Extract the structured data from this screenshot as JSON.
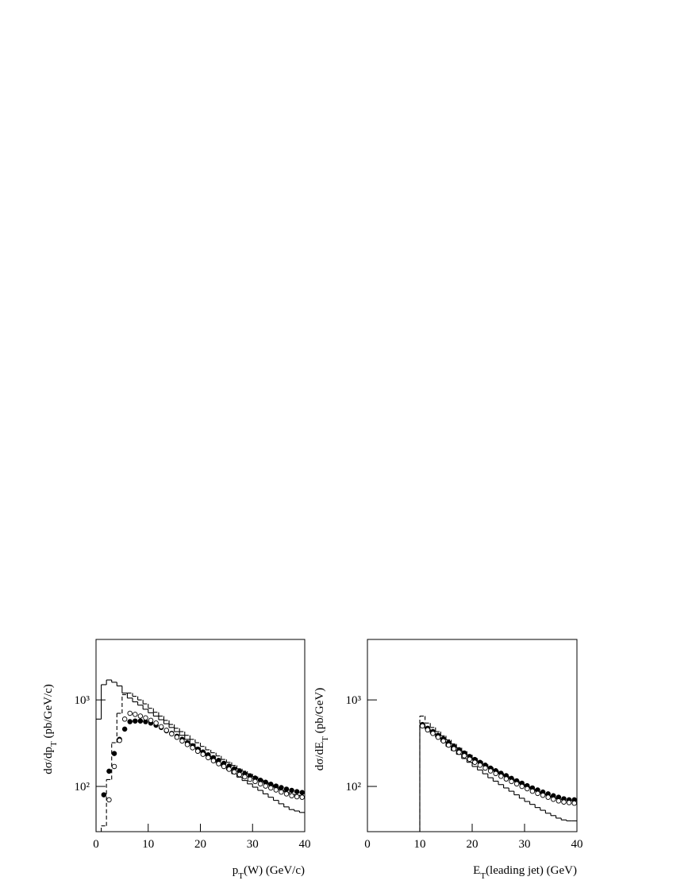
{
  "chart_data": [
    {
      "type": "histogram",
      "log_y": true,
      "xlabel": [
        "p",
        "T",
        "(W) (GeV/c)"
      ],
      "ylabel": [
        "dσ/dp",
        "T",
        " (pb/GeV/c)"
      ],
      "bins": [
        0,
        1,
        2,
        3,
        4,
        5,
        6,
        7,
        8,
        9,
        10,
        11,
        12,
        13,
        14,
        15,
        16,
        17,
        18,
        19,
        20,
        21,
        22,
        23,
        24,
        25,
        26,
        27,
        28,
        29,
        30,
        31,
        32,
        33,
        34,
        35,
        36,
        37,
        38,
        39,
        40
      ],
      "xlim": [
        0,
        40
      ],
      "xticks": [
        0,
        10,
        20,
        30,
        40
      ],
      "ylim": [
        30,
        5000
      ],
      "yticks": [
        {
          "value": 100,
          "label": "10²"
        },
        {
          "value": 1000,
          "label": "10³"
        }
      ],
      "series": [
        {
          "style": "solid",
          "color": "#000000",
          "values": [
            600,
            1500,
            1700,
            1600,
            1450,
            1200,
            1050,
            950,
            870,
            780,
            710,
            650,
            590,
            530,
            480,
            430,
            390,
            350,
            310,
            280,
            250,
            225,
            205,
            185,
            170,
            155,
            140,
            128,
            117,
            107,
            98,
            90,
            82,
            75,
            69,
            63,
            58,
            54,
            52,
            50
          ]
        },
        {
          "style": "dashed",
          "color": "#000000",
          "values": [
            null,
            35,
            120,
            320,
            700,
            1150,
            1200,
            1100,
            1000,
            900,
            800,
            720,
            650,
            580,
            520,
            470,
            430,
            390,
            350,
            320,
            290,
            265,
            245,
            225,
            205,
            190,
            175,
            160,
            150,
            140,
            130,
            120,
            112,
            105,
            98,
            92,
            87,
            82,
            80,
            78
          ]
        },
        {
          "style": "filled-circle",
          "color": "#000000",
          "values": [
            null,
            80,
            150,
            240,
            350,
            460,
            560,
            570,
            570,
            560,
            540,
            510,
            480,
            440,
            410,
            380,
            350,
            320,
            295,
            270,
            250,
            232,
            215,
            200,
            185,
            172,
            160,
            150,
            140,
            132,
            125,
            118,
            112,
            106,
            101,
            97,
            93,
            90,
            87,
            85
          ]
        },
        {
          "style": "open-circle",
          "color": "#000000",
          "values": [
            null,
            null,
            70,
            170,
            340,
            600,
            700,
            680,
            650,
            620,
            580,
            540,
            490,
            445,
            405,
            370,
            335,
            305,
            280,
            255,
            235,
            215,
            198,
            183,
            170,
            158,
            147,
            137,
            129,
            121,
            114,
            107,
            101,
            96,
            91,
            86,
            82,
            78,
            76,
            75
          ]
        }
      ]
    },
    {
      "type": "histogram",
      "log_y": true,
      "xlabel": [
        "E",
        "T",
        "(leading jet) (GeV)"
      ],
      "ylabel": [
        "dσ/dE",
        "T",
        " (pb/GeV)"
      ],
      "bins": [
        0,
        1,
        2,
        3,
        4,
        5,
        6,
        7,
        8,
        9,
        10,
        11,
        12,
        13,
        14,
        15,
        16,
        17,
        18,
        19,
        20,
        21,
        22,
        23,
        24,
        25,
        26,
        27,
        28,
        29,
        30,
        31,
        32,
        33,
        34,
        35,
        36,
        37,
        38,
        39,
        40
      ],
      "xlim": [
        0,
        40
      ],
      "xticks": [
        0,
        10,
        20,
        30,
        40
      ],
      "ylim": [
        30,
        5000
      ],
      "yticks": [
        {
          "value": 100,
          "label": "10²"
        },
        {
          "value": 1000,
          "label": "10³"
        }
      ],
      "series": [
        {
          "style": "solid",
          "color": "#000000",
          "values": [
            null,
            null,
            null,
            null,
            null,
            null,
            null,
            null,
            null,
            null,
            520,
            460,
            410,
            370,
            330,
            290,
            260,
            235,
            210,
            190,
            170,
            155,
            140,
            126,
            115,
            105,
            96,
            88,
            80,
            73,
            67,
            62,
            57,
            53,
            49,
            46,
            43,
            41,
            40,
            40
          ]
        },
        {
          "style": "dashed",
          "color": "#000000",
          "values": [
            null,
            null,
            null,
            null,
            null,
            null,
            null,
            null,
            null,
            null,
            650,
            540,
            480,
            430,
            385,
            345,
            310,
            280,
            255,
            232,
            212,
            195,
            180,
            166,
            153,
            142,
            132,
            123,
            115,
            107,
            100,
            94,
            88,
            83,
            79,
            75,
            72,
            70,
            69,
            68
          ]
        },
        {
          "style": "filled-circle",
          "color": "#000000",
          "values": [
            null,
            null,
            null,
            null,
            null,
            null,
            null,
            null,
            null,
            null,
            520,
            470,
            430,
            390,
            355,
            320,
            290,
            265,
            243,
            222,
            205,
            190,
            176,
            163,
            152,
            142,
            133,
            124,
            116,
            109,
            102,
            96,
            91,
            86,
            82,
            78,
            75,
            72,
            70,
            70
          ]
        },
        {
          "style": "open-circle",
          "color": "#000000",
          "values": [
            null,
            null,
            null,
            null,
            null,
            null,
            null,
            null,
            null,
            null,
            500,
            450,
            410,
            370,
            335,
            300,
            272,
            248,
            226,
            206,
            190,
            176,
            163,
            151,
            141,
            131,
            122,
            114,
            107,
            100,
            94,
            88,
            83,
            79,
            75,
            71,
            68,
            66,
            65,
            64
          ]
        }
      ]
    }
  ]
}
